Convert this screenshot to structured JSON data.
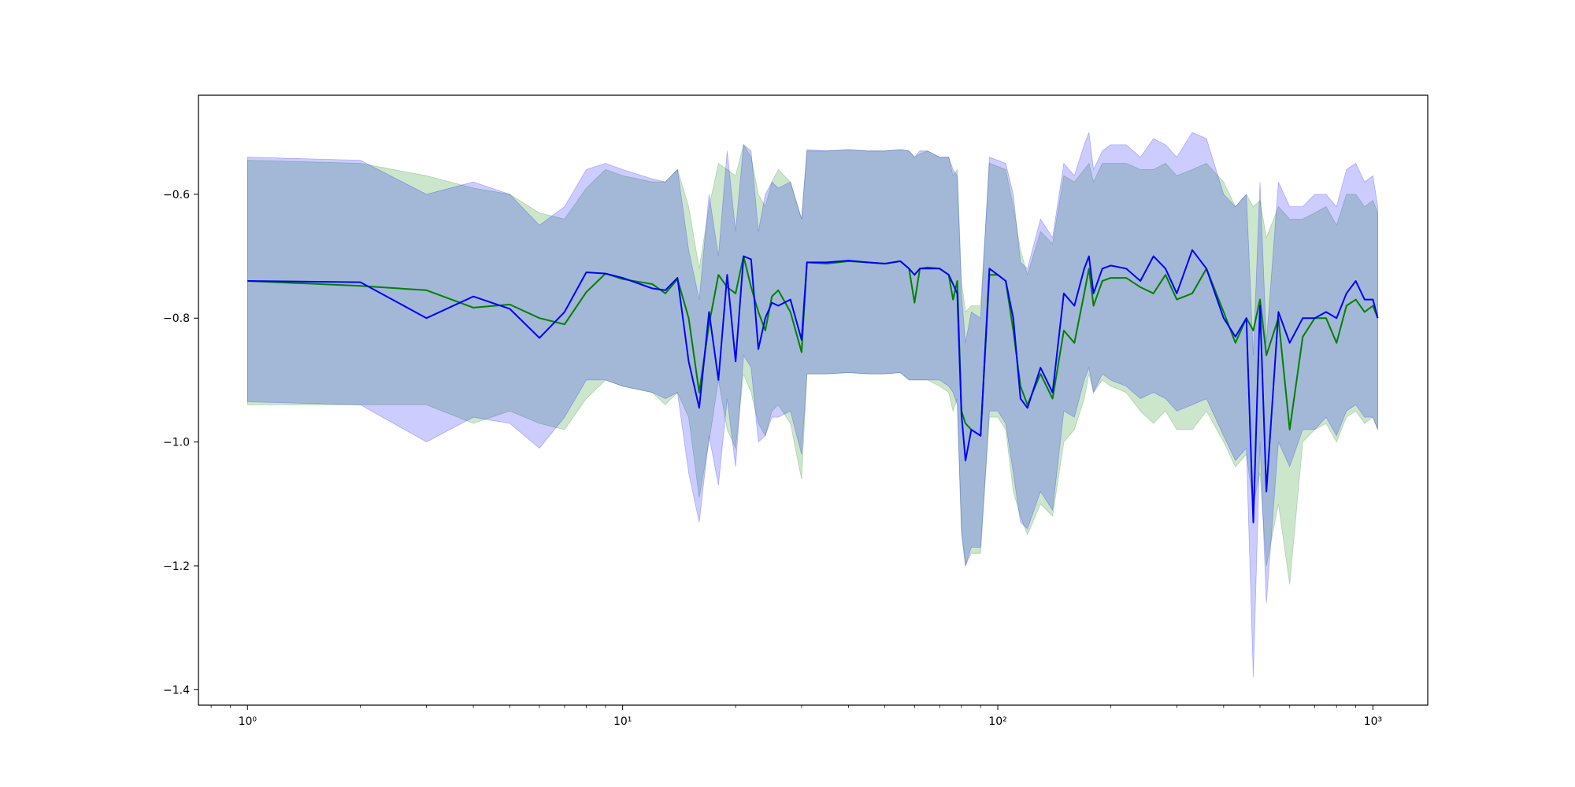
{
  "chart_data": {
    "type": "line",
    "title": "",
    "xlabel": "",
    "ylabel": "",
    "x_scale": "log",
    "xlim": [
      0.74,
      1400
    ],
    "ylim": [
      -1.425,
      -0.44
    ],
    "grid": false,
    "legend": "none",
    "x_ticks": [
      {
        "value": 1,
        "label": "10⁰"
      },
      {
        "value": 10,
        "label": "10¹"
      },
      {
        "value": 100,
        "label": "10²"
      },
      {
        "value": 1000,
        "label": "10³"
      }
    ],
    "y_ticks": [
      {
        "value": -0.6,
        "label": "−0.6"
      },
      {
        "value": -0.8,
        "label": "−0.8"
      },
      {
        "value": -1.0,
        "label": "−1.0"
      },
      {
        "value": -1.2,
        "label": "−1.2"
      },
      {
        "value": -1.4,
        "label": "−1.4"
      }
    ],
    "series": [
      {
        "color": "#008000",
        "band_color": "#008000",
        "x": [
          1,
          2,
          3,
          4,
          5,
          6,
          7,
          8,
          9,
          10,
          12,
          13,
          14,
          15,
          16,
          17,
          18,
          19,
          20,
          21,
          22,
          23,
          24,
          25,
          26,
          28,
          30,
          31,
          35,
          40,
          45,
          50,
          55,
          58,
          60,
          62,
          65,
          70,
          74,
          76,
          78,
          80,
          82,
          85,
          90,
          95,
          100,
          105,
          110,
          115,
          120,
          130,
          140,
          150,
          160,
          170,
          175,
          180,
          190,
          200,
          220,
          240,
          260,
          280,
          300,
          330,
          360,
          400,
          430,
          460,
          480,
          500,
          520,
          560,
          600,
          650,
          700,
          750,
          800,
          850,
          900,
          950,
          1000,
          1030
        ],
        "y": [
          -0.74,
          -0.748,
          -0.755,
          -0.783,
          -0.778,
          -0.8,
          -0.81,
          -0.758,
          -0.728,
          -0.737,
          -0.745,
          -0.76,
          -0.737,
          -0.8,
          -0.92,
          -0.81,
          -0.73,
          -0.75,
          -0.76,
          -0.7,
          -0.75,
          -0.79,
          -0.82,
          -0.765,
          -0.755,
          -0.79,
          -0.855,
          -0.71,
          -0.712,
          -0.708,
          -0.71,
          -0.712,
          -0.708,
          -0.72,
          -0.775,
          -0.72,
          -0.718,
          -0.72,
          -0.73,
          -0.77,
          -0.74,
          -0.95,
          -0.97,
          -0.98,
          -0.99,
          -0.73,
          -0.73,
          -0.74,
          -0.82,
          -0.91,
          -0.94,
          -0.89,
          -0.93,
          -0.82,
          -0.84,
          -0.76,
          -0.72,
          -0.78,
          -0.74,
          -0.735,
          -0.735,
          -0.75,
          -0.76,
          -0.73,
          -0.77,
          -0.76,
          -0.72,
          -0.79,
          -0.84,
          -0.8,
          -0.82,
          -0.77,
          -0.86,
          -0.8,
          -0.98,
          -0.83,
          -0.8,
          -0.8,
          -0.84,
          -0.78,
          -0.77,
          -0.79,
          -0.78,
          -0.8
        ],
        "lower": [
          -0.94,
          -0.94,
          -0.94,
          -0.97,
          -0.95,
          -0.97,
          -0.98,
          -0.93,
          -0.9,
          -0.91,
          -0.92,
          -0.94,
          -0.92,
          -0.96,
          -1.09,
          -1.0,
          -0.9,
          -0.98,
          -1.01,
          -0.89,
          -0.92,
          -0.97,
          -0.99,
          -0.95,
          -0.94,
          -0.97,
          -1.06,
          -0.89,
          -0.89,
          -0.888,
          -0.89,
          -0.89,
          -0.888,
          -0.9,
          -0.9,
          -0.9,
          -0.9,
          -0.91,
          -0.92,
          -0.95,
          -0.93,
          -1.15,
          -1.2,
          -1.18,
          -1.18,
          -0.96,
          -0.96,
          -0.98,
          -1.08,
          -1.12,
          -1.15,
          -1.1,
          -1.12,
          -1.0,
          -0.98,
          -0.93,
          -0.89,
          -0.92,
          -0.9,
          -0.91,
          -0.92,
          -0.95,
          -0.97,
          -0.95,
          -0.98,
          -0.98,
          -0.95,
          -1.0,
          -1.04,
          -1.02,
          -1.1,
          -1.05,
          -1.2,
          -1.1,
          -1.23,
          -1.0,
          -0.98,
          -0.97,
          -1.0,
          -0.96,
          -0.95,
          -0.97,
          -0.96,
          -0.98
        ],
        "upper": [
          -0.545,
          -0.55,
          -0.57,
          -0.59,
          -0.6,
          -0.63,
          -0.64,
          -0.59,
          -0.56,
          -0.57,
          -0.58,
          -0.58,
          -0.56,
          -0.62,
          -0.72,
          -0.62,
          -0.55,
          -0.56,
          -0.57,
          -0.52,
          -0.54,
          -0.6,
          -0.62,
          -0.58,
          -0.56,
          -0.58,
          -0.64,
          -0.53,
          -0.53,
          -0.528,
          -0.53,
          -0.53,
          -0.528,
          -0.53,
          -0.54,
          -0.535,
          -0.53,
          -0.54,
          -0.54,
          -0.57,
          -0.56,
          -0.74,
          -0.79,
          -0.78,
          -0.78,
          -0.55,
          -0.555,
          -0.56,
          -0.62,
          -0.69,
          -0.73,
          -0.66,
          -0.68,
          -0.57,
          -0.58,
          -0.56,
          -0.55,
          -0.58,
          -0.55,
          -0.55,
          -0.55,
          -0.56,
          -0.56,
          -0.55,
          -0.57,
          -0.56,
          -0.55,
          -0.58,
          -0.62,
          -0.6,
          -0.62,
          -0.61,
          -0.67,
          -0.62,
          -0.64,
          -0.64,
          -0.63,
          -0.62,
          -0.65,
          -0.6,
          -0.6,
          -0.62,
          -0.61,
          -0.63
        ]
      },
      {
        "color": "#0000ff",
        "band_color": "#0000ff",
        "x": [
          1,
          2,
          3,
          4,
          5,
          6,
          7,
          8,
          9,
          10,
          12,
          13,
          14,
          15,
          16,
          17,
          18,
          19,
          20,
          21,
          22,
          23,
          24,
          25,
          26,
          28,
          30,
          31,
          35,
          40,
          45,
          50,
          55,
          58,
          60,
          62,
          65,
          70,
          74,
          76,
          78,
          80,
          82,
          85,
          90,
          95,
          100,
          105,
          110,
          115,
          120,
          130,
          140,
          150,
          160,
          170,
          175,
          180,
          190,
          200,
          220,
          240,
          260,
          280,
          300,
          330,
          360,
          400,
          430,
          460,
          480,
          500,
          520,
          560,
          600,
          650,
          700,
          750,
          800,
          850,
          900,
          950,
          1000,
          1030
        ],
        "y": [
          -0.74,
          -0.742,
          -0.8,
          -0.765,
          -0.785,
          -0.832,
          -0.79,
          -0.726,
          -0.728,
          -0.735,
          -0.752,
          -0.755,
          -0.735,
          -0.87,
          -0.945,
          -0.79,
          -0.9,
          -0.73,
          -0.87,
          -0.7,
          -0.705,
          -0.85,
          -0.8,
          -0.775,
          -0.78,
          -0.77,
          -0.835,
          -0.71,
          -0.71,
          -0.707,
          -0.71,
          -0.712,
          -0.708,
          -0.72,
          -0.73,
          -0.72,
          -0.72,
          -0.72,
          -0.73,
          -0.745,
          -0.76,
          -0.955,
          -1.03,
          -0.98,
          -0.99,
          -0.72,
          -0.73,
          -0.74,
          -0.8,
          -0.93,
          -0.945,
          -0.88,
          -0.92,
          -0.76,
          -0.78,
          -0.72,
          -0.7,
          -0.76,
          -0.72,
          -0.715,
          -0.72,
          -0.74,
          -0.7,
          -0.72,
          -0.76,
          -0.69,
          -0.72,
          -0.8,
          -0.83,
          -0.8,
          -1.13,
          -0.78,
          -1.08,
          -0.79,
          -0.84,
          -0.8,
          -0.8,
          -0.79,
          -0.8,
          -0.76,
          -0.74,
          -0.77,
          -0.77,
          -0.8
        ],
        "lower": [
          -0.935,
          -0.94,
          -1.0,
          -0.96,
          -0.97,
          -1.01,
          -0.96,
          -0.9,
          -0.9,
          -0.91,
          -0.92,
          -0.93,
          -0.92,
          -1.05,
          -1.13,
          -0.99,
          -1.07,
          -0.93,
          -1.04,
          -0.86,
          -0.88,
          -1.0,
          -0.99,
          -0.96,
          -0.96,
          -0.95,
          -1.02,
          -0.89,
          -0.89,
          -0.888,
          -0.89,
          -0.89,
          -0.888,
          -0.9,
          -0.9,
          -0.9,
          -0.9,
          -0.9,
          -0.91,
          -0.92,
          -0.94,
          -1.14,
          -1.2,
          -1.17,
          -1.17,
          -0.95,
          -0.95,
          -0.97,
          -1.05,
          -1.13,
          -1.14,
          -1.08,
          -1.11,
          -0.95,
          -0.96,
          -0.9,
          -0.88,
          -0.92,
          -0.89,
          -0.9,
          -0.91,
          -0.93,
          -0.92,
          -0.93,
          -0.95,
          -0.94,
          -0.93,
          -0.99,
          -1.03,
          -1.01,
          -1.38,
          -1.0,
          -1.26,
          -1.0,
          -1.04,
          -0.98,
          -0.98,
          -0.96,
          -0.99,
          -0.95,
          -0.94,
          -0.96,
          -0.96,
          -0.98
        ],
        "upper": [
          -0.54,
          -0.545,
          -0.6,
          -0.58,
          -0.6,
          -0.65,
          -0.62,
          -0.56,
          -0.55,
          -0.56,
          -0.575,
          -0.58,
          -0.56,
          -0.69,
          -0.77,
          -0.6,
          -0.7,
          -0.53,
          -0.66,
          -0.52,
          -0.53,
          -0.66,
          -0.6,
          -0.58,
          -0.59,
          -0.58,
          -0.64,
          -0.528,
          -0.53,
          -0.528,
          -0.53,
          -0.53,
          -0.528,
          -0.53,
          -0.54,
          -0.53,
          -0.53,
          -0.54,
          -0.54,
          -0.56,
          -0.57,
          -0.76,
          -0.84,
          -0.79,
          -0.8,
          -0.54,
          -0.545,
          -0.55,
          -0.6,
          -0.71,
          -0.72,
          -0.64,
          -0.67,
          -0.55,
          -0.57,
          -0.52,
          -0.5,
          -0.56,
          -0.53,
          -0.52,
          -0.52,
          -0.54,
          -0.51,
          -0.52,
          -0.54,
          -0.5,
          -0.51,
          -0.6,
          -0.62,
          -0.6,
          -0.86,
          -0.58,
          -0.84,
          -0.58,
          -0.62,
          -0.62,
          -0.6,
          -0.6,
          -0.62,
          -0.56,
          -0.55,
          -0.58,
          -0.57,
          -0.62
        ]
      }
    ]
  }
}
